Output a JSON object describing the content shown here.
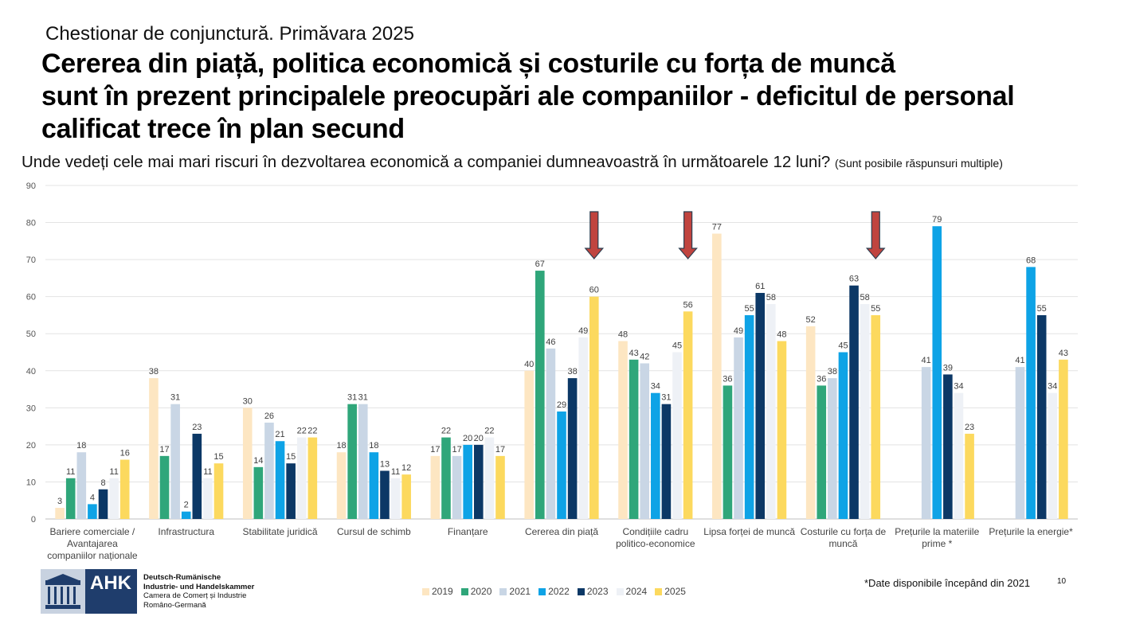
{
  "header": {
    "supertitle": "Chestionar de conjunctură. Primăvara 2025",
    "title_lines": [
      "Cererea din piață, politica economică și costurile cu forța de muncă",
      "sunt în prezent principalele preocupări ale companiilor - deficitul de personal",
      "calificat trece în plan secund"
    ],
    "question": "Unde vedeți cele mai mari riscuri în dezvoltarea economică a companiei dumneavoastră în următoarele 12 luni?",
    "question_note": "(Sunt posibile răspunsuri multiple)"
  },
  "chart_data": {
    "type": "bar",
    "ylim": [
      0,
      90
    ],
    "yticks": [
      0,
      10,
      20,
      30,
      40,
      50,
      60,
      70,
      80,
      90
    ],
    "grid": true,
    "legend_position": "bottom",
    "categories": [
      [
        "Bariere comerciale /",
        "Avantajarea",
        "companiilor naționale"
      ],
      [
        "Infrastructura"
      ],
      [
        "Stabilitate juridică"
      ],
      [
        "Cursul de schimb"
      ],
      [
        "Finanțare"
      ],
      [
        "Cererea din piață"
      ],
      [
        "Condițiile cadru",
        "politico-economice"
      ],
      [
        "Lipsa forței de muncă"
      ],
      [
        "Costurile cu forța de",
        "muncă"
      ],
      [
        "Prețurile la materiile",
        "prime *"
      ],
      [
        "Prețurile la energie*"
      ]
    ],
    "series": [
      {
        "name": "2019",
        "color": "#fde6c2",
        "values": [
          3,
          38,
          30,
          18,
          17,
          40,
          48,
          77,
          52,
          null,
          null
        ]
      },
      {
        "name": "2020",
        "color": "#2fa67a",
        "values": [
          11,
          17,
          14,
          31,
          22,
          67,
          43,
          36,
          36,
          null,
          null
        ]
      },
      {
        "name": "2021",
        "color": "#c9d6e5",
        "values": [
          18,
          31,
          26,
          31,
          17,
          46,
          42,
          49,
          38,
          41,
          41
        ]
      },
      {
        "name": "2022",
        "color": "#0ea3e6",
        "values": [
          4,
          2,
          21,
          18,
          20,
          29,
          34,
          55,
          45,
          79,
          68
        ]
      },
      {
        "name": "2023",
        "color": "#0c3866",
        "values": [
          8,
          23,
          15,
          13,
          20,
          38,
          31,
          61,
          63,
          39,
          55
        ]
      },
      {
        "name": "2024",
        "color": "#eef1f6",
        "values": [
          11,
          11,
          22,
          11,
          22,
          49,
          45,
          58,
          58,
          34,
          34
        ]
      },
      {
        "name": "2025",
        "color": "#fcd95e",
        "values": [
          16,
          15,
          22,
          12,
          17,
          60,
          56,
          48,
          55,
          23,
          43
        ]
      }
    ],
    "highlight_arrows": [
      "Cererea din piață",
      "Condițiile cadru politico-economice",
      "Costurile cu forța de muncă"
    ],
    "arrow_color": "#c0443f"
  },
  "footer": {
    "logo_text": "AHK",
    "org_lines": [
      "Deutsch-Rumänische",
      "Industrie- und Handelskammer",
      "Camera de Comerț și Industrie",
      "Româno-Germană"
    ],
    "footnote": "*Date disponibile începând din 2021",
    "page_number": "10"
  }
}
